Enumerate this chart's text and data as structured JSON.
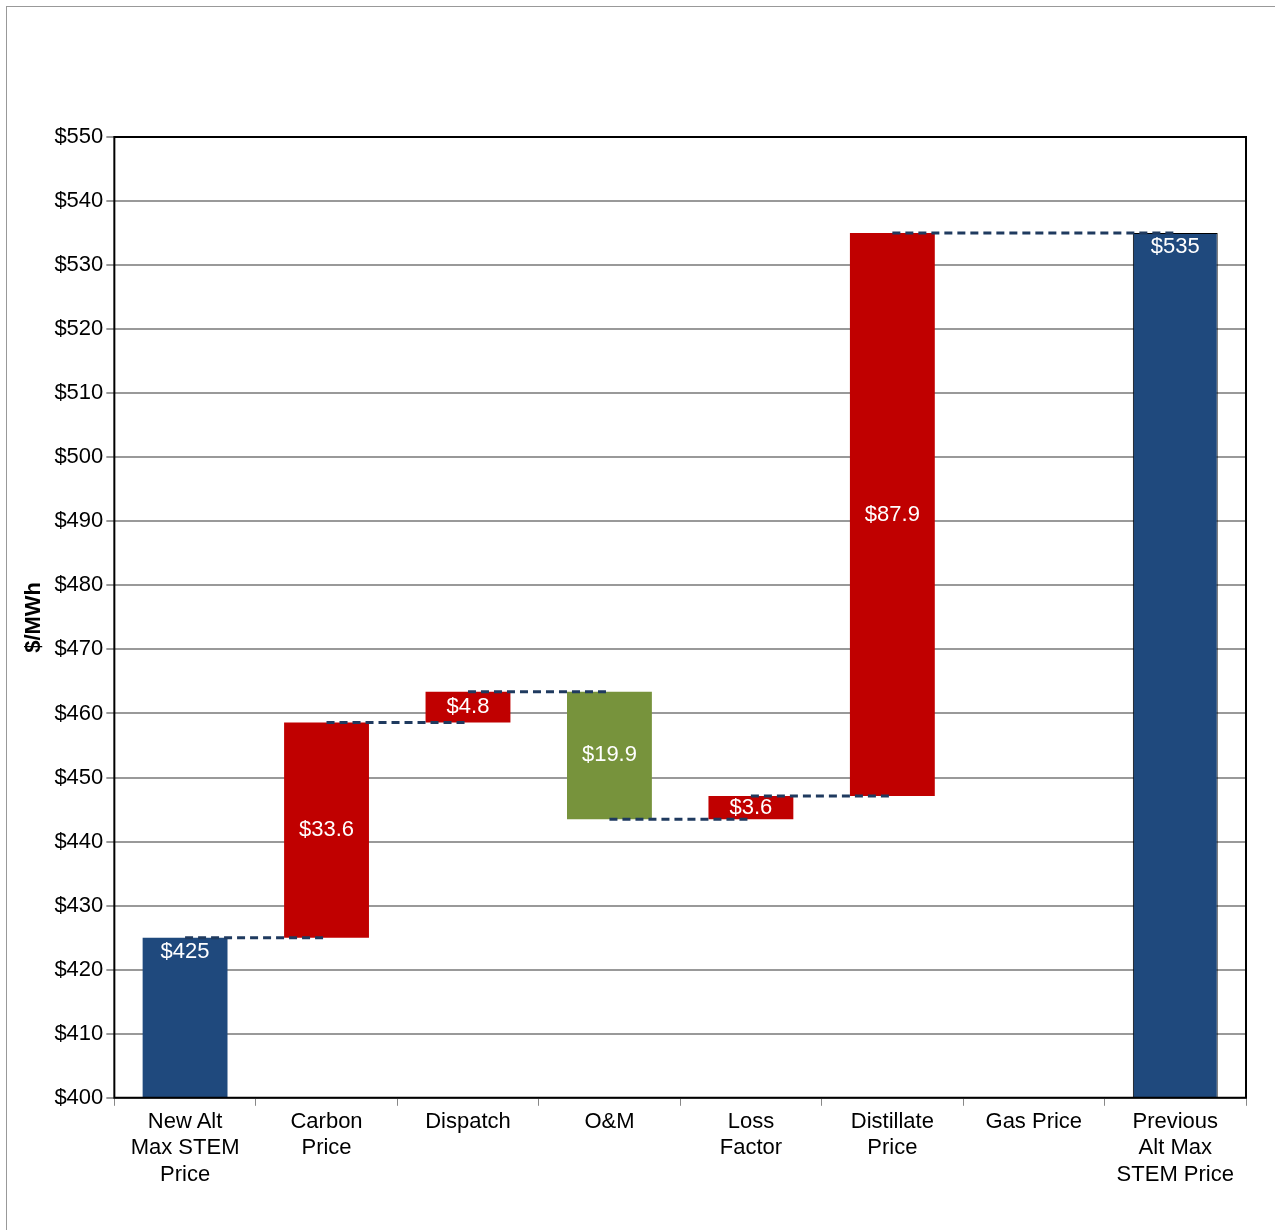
{
  "chart_data": {
    "type": "bar",
    "ylabel": "$/MWh",
    "categories": [
      "New Alt Max STEM Price",
      "Carbon Price",
      "Dispatch",
      "O&M",
      "Loss Factor",
      "Distillate Price",
      "Gas Price",
      "Previous Alt Max STEM Price"
    ],
    "values": [
      425,
      33.6,
      4.8,
      -19.9,
      3.6,
      87.9,
      null,
      535
    ],
    "base": [
      null,
      425,
      458.6,
      463.4,
      443.5,
      447.1,
      null,
      null
    ],
    "colors": [
      "#1f497d",
      "#c00000",
      "#c00000",
      "#77933c",
      "#c00000",
      "#c00000",
      "#c00000",
      "#1f497d"
    ],
    "value_labels": [
      "$425",
      "$33.6",
      "$4.8",
      "$19.9",
      "$3.6",
      "$87.9",
      null,
      "$535"
    ],
    "ylim": [
      400,
      550
    ],
    "yticks": [
      {
        "value": 400,
        "label": "$400"
      },
      {
        "value": 410,
        "label": "$410"
      },
      {
        "value": 420,
        "label": "$420"
      },
      {
        "value": 430,
        "label": "$430"
      },
      {
        "value": 440,
        "label": "$440"
      },
      {
        "value": 450,
        "label": "$450"
      },
      {
        "value": 460,
        "label": "$460"
      },
      {
        "value": 470,
        "label": "$470"
      },
      {
        "value": 480,
        "label": "$480"
      },
      {
        "value": 490,
        "label": "$490"
      },
      {
        "value": 500,
        "label": "$500"
      },
      {
        "value": 510,
        "label": "$510"
      },
      {
        "value": 520,
        "label": "$520"
      },
      {
        "value": 530,
        "label": "$530"
      },
      {
        "value": 540,
        "label": "$540"
      },
      {
        "value": 550,
        "label": "$550"
      }
    ],
    "grid": "y",
    "legend": false
  }
}
